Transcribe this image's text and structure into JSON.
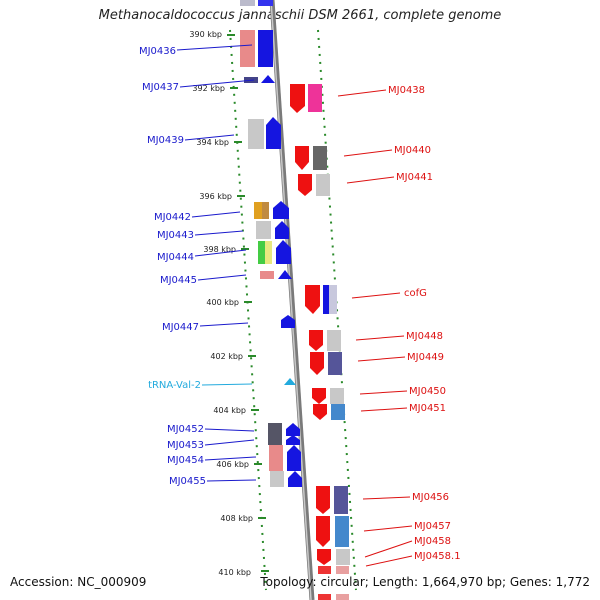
{
  "title": "Methanocaldococcus jannaschii DSM 2661, complete genome",
  "footer": {
    "accession": "Accession: NC_000909",
    "topology": "Topology: circular; Length: 1,664,970 bp; Genes: 1,772"
  },
  "ticks": [
    "390 kbp",
    "392 kbp",
    "394 kbp",
    "396 kbp",
    "398 kbp",
    "400 kbp",
    "402 kbp",
    "404 kbp",
    "406 kbp",
    "408 kbp",
    "410 kbp"
  ],
  "labels_left": [
    {
      "text": "MJ0436",
      "color": "#1a1acc"
    },
    {
      "text": "MJ0437",
      "color": "#1a1acc"
    },
    {
      "text": "MJ0439",
      "color": "#1a1acc"
    },
    {
      "text": "MJ0442",
      "color": "#1a1acc"
    },
    {
      "text": "MJ0443",
      "color": "#1a1acc"
    },
    {
      "text": "MJ0444",
      "color": "#1a1acc"
    },
    {
      "text": "MJ0445",
      "color": "#1a1acc"
    },
    {
      "text": "MJ0447",
      "color": "#1a1acc"
    },
    {
      "text": "tRNA-Val-2",
      "color": "#22aadd"
    },
    {
      "text": "MJ0452",
      "color": "#1a1acc"
    },
    {
      "text": "MJ0453",
      "color": "#1a1acc"
    },
    {
      "text": "MJ0454",
      "color": "#1a1acc"
    },
    {
      "text": "MJ0455",
      "color": "#1a1acc"
    }
  ],
  "labels_right": [
    {
      "text": "MJ0438",
      "color": "#dd1111"
    },
    {
      "text": "MJ0440",
      "color": "#dd1111"
    },
    {
      "text": "MJ0441",
      "color": "#dd1111"
    },
    {
      "text": "cofG",
      "color": "#dd1111"
    },
    {
      "text": "MJ0448",
      "color": "#dd1111"
    },
    {
      "text": "MJ0449",
      "color": "#dd1111"
    },
    {
      "text": "MJ0450",
      "color": "#dd1111"
    },
    {
      "text": "MJ0451",
      "color": "#dd1111"
    },
    {
      "text": "MJ0456",
      "color": "#dd1111"
    },
    {
      "text": "MJ0457",
      "color": "#dd1111"
    },
    {
      "text": "MJ0458",
      "color": "#dd1111"
    },
    {
      "text": "MJ0458.1",
      "color": "#dd1111"
    }
  ]
}
